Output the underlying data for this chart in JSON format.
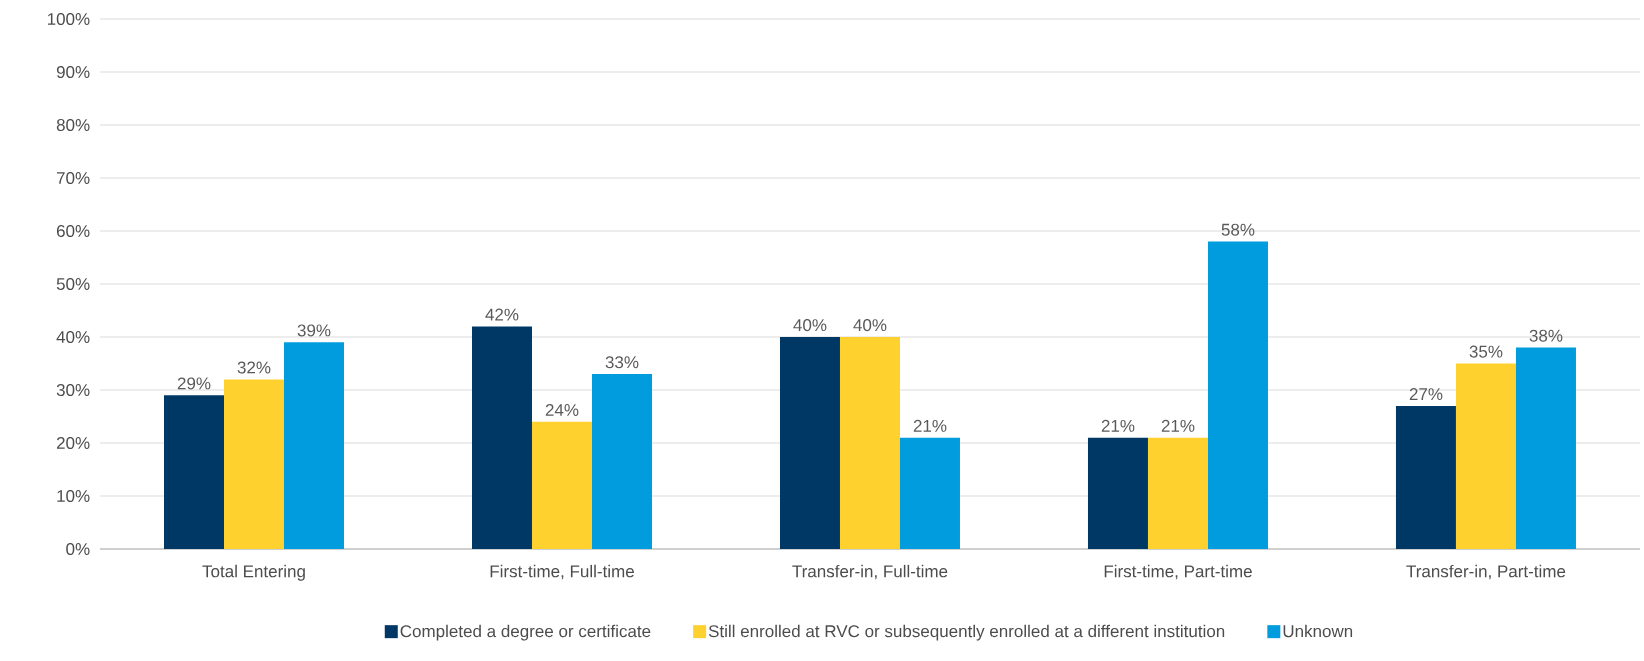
{
  "chart_data": {
    "type": "bar",
    "categories": [
      "Total Entering",
      "First-time, Full-time",
      "Transfer-in, Full-time",
      "First-time, Part-time",
      "Transfer-in, Part-time"
    ],
    "series": [
      {
        "name": "Completed a degree or certificate",
        "color": "#003865",
        "values": [
          29,
          42,
          40,
          21,
          27
        ],
        "value_labels": [
          "29%",
          "42%",
          "40%",
          "21%",
          "27%"
        ]
      },
      {
        "name": "Still enrolled at RVC or subsequently enrolled at a different institution",
        "color": "#ffd12f",
        "values": [
          32,
          24,
          40,
          21,
          35
        ],
        "value_labels": [
          "32%",
          "24%",
          "40%",
          "21%",
          "35%"
        ]
      },
      {
        "name": "Unknown",
        "color": "#009cde",
        "values": [
          39,
          33,
          21,
          58,
          38
        ],
        "value_labels": [
          "39%",
          "33%",
          "21%",
          "58%",
          "38%"
        ]
      }
    ],
    "ylim": [
      0,
      100
    ],
    "yticks": [
      {
        "value": 0,
        "label": "0%"
      },
      {
        "value": 10,
        "label": "10%"
      },
      {
        "value": 20,
        "label": "20%"
      },
      {
        "value": 30,
        "label": "30%"
      },
      {
        "value": 40,
        "label": "40%"
      },
      {
        "value": 50,
        "label": "50%"
      },
      {
        "value": 60,
        "label": "60%"
      },
      {
        "value": 70,
        "label": "70%"
      },
      {
        "value": 80,
        "label": "80%"
      },
      {
        "value": 90,
        "label": "90%"
      },
      {
        "value": 100,
        "label": "100%"
      }
    ],
    "grid": "y",
    "legend": "bottom"
  }
}
